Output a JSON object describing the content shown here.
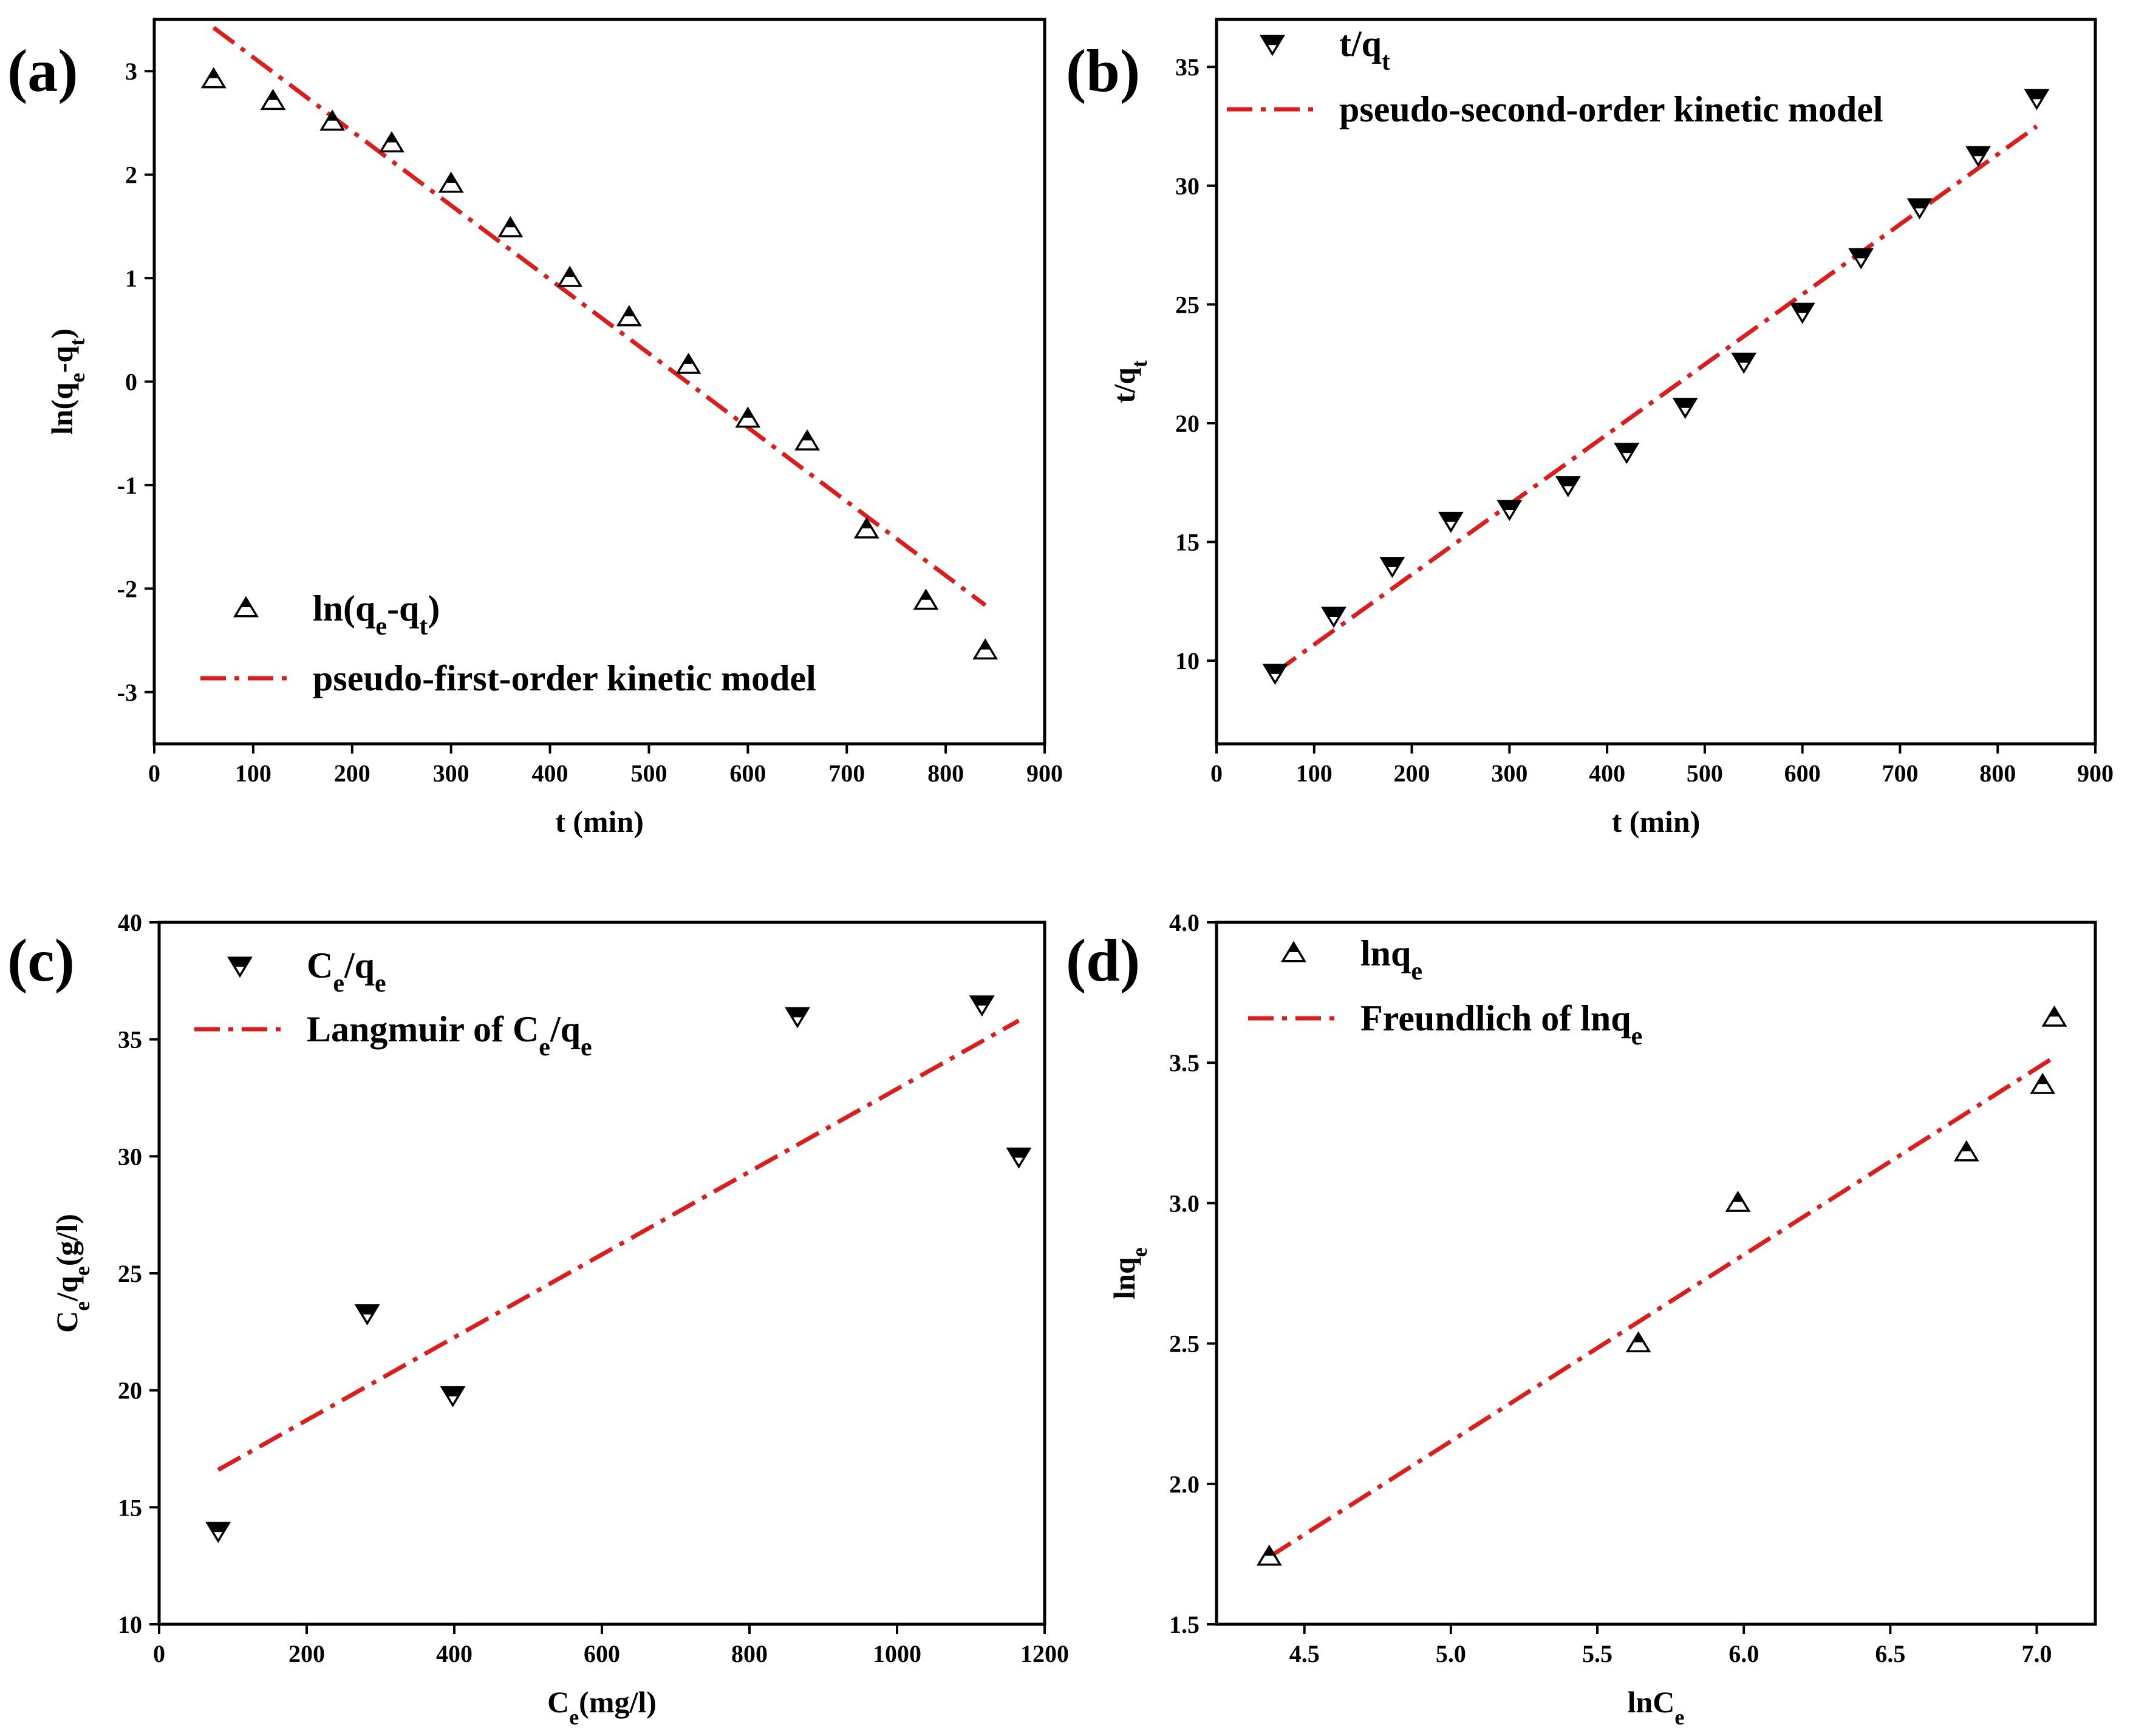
{
  "figure": {
    "colors": {
      "fit": "#dd1c1c",
      "marker_dark": "#000000",
      "marker_light": "#ffffff",
      "frame": "#000000"
    },
    "panels": [
      "a",
      "b",
      "c",
      "d"
    ]
  },
  "chart_data": [
    {
      "id": "a",
      "panel_label": "(a)",
      "type": "scatter",
      "title": "",
      "xlabel": "t (min)",
      "ylabel": "ln(qe-qt)",
      "xlim": [
        0,
        900
      ],
      "ylim": [
        -3.5,
        3.5
      ],
      "xticks": [
        0,
        100,
        200,
        300,
        400,
        500,
        600,
        700,
        800,
        900
      ],
      "yticks": [
        -3,
        -2,
        -1,
        0,
        1,
        2,
        3
      ],
      "marker": "triangle-up",
      "legend_position": "bottom-left",
      "series": [
        {
          "name": "ln(qe-qt)",
          "kind": "scatter",
          "x": [
            60,
            120,
            180,
            240,
            300,
            360,
            420,
            480,
            540,
            600,
            660,
            720,
            780,
            840
          ],
          "y": [
            2.92,
            2.71,
            2.51,
            2.3,
            1.91,
            1.48,
            1.0,
            0.62,
            0.16,
            -0.36,
            -0.58,
            -1.43,
            -2.12,
            -2.6
          ]
        },
        {
          "name": "pseudo-first-order kinetic model",
          "kind": "line",
          "x": [
            60,
            840
          ],
          "y": [
            3.42,
            -2.16
          ]
        }
      ]
    },
    {
      "id": "b",
      "panel_label": "(b)",
      "type": "scatter",
      "title": "",
      "xlabel": "t (min)",
      "ylabel": "t/qt",
      "xlim": [
        0,
        900
      ],
      "ylim": [
        6.5,
        37
      ],
      "xticks": [
        0,
        100,
        200,
        300,
        400,
        500,
        600,
        700,
        800,
        900
      ],
      "yticks": [
        10,
        15,
        20,
        25,
        30,
        35
      ],
      "marker": "triangle-down",
      "legend_position": "top-left",
      "series": [
        {
          "name": "t/qt",
          "kind": "scatter",
          "x": [
            60,
            120,
            180,
            240,
            300,
            360,
            420,
            480,
            540,
            600,
            660,
            720,
            780,
            840
          ],
          "y": [
            9.5,
            11.9,
            14.0,
            15.9,
            16.4,
            17.4,
            18.8,
            20.7,
            22.6,
            24.7,
            27.0,
            29.1,
            31.3,
            33.7
          ]
        },
        {
          "name": "pseudo-second-order kinetic model",
          "kind": "line",
          "x": [
            60,
            840
          ],
          "y": [
            9.5,
            32.5
          ]
        }
      ]
    },
    {
      "id": "c",
      "panel_label": "(c)",
      "type": "scatter",
      "title": "",
      "xlabel": "Ce(mg/l)",
      "ylabel": "Ce/qe(g/l)",
      "xlim": [
        0,
        1200
      ],
      "ylim": [
        10,
        40
      ],
      "xticks": [
        0,
        200,
        400,
        600,
        800,
        1000,
        1200
      ],
      "yticks": [
        10,
        15,
        20,
        25,
        30,
        35,
        40
      ],
      "marker": "triangle-down",
      "legend_position": "top-left",
      "series": [
        {
          "name": "Ce/qe",
          "kind": "scatter",
          "x": [
            80,
            282,
            398,
            865,
            1115,
            1165
          ],
          "y": [
            14.0,
            23.3,
            19.8,
            36.0,
            36.5,
            30.0
          ]
        },
        {
          "name": "Langmuir of Ce/qe",
          "kind": "line",
          "x": [
            80,
            1165
          ],
          "y": [
            16.6,
            35.8
          ]
        }
      ]
    },
    {
      "id": "d",
      "panel_label": "(d)",
      "type": "scatter",
      "title": "",
      "xlabel": "lnCe",
      "ylabel": "lnqe",
      "xlim": [
        4.2,
        7.2
      ],
      "ylim": [
        1.5,
        4.0
      ],
      "xticks": [
        4.5,
        5.0,
        5.5,
        6.0,
        6.5,
        7.0
      ],
      "yticks": [
        1.5,
        2.0,
        2.5,
        3.0,
        3.5,
        4.0
      ],
      "marker": "triangle-up",
      "legend_position": "top-left",
      "series": [
        {
          "name": "lnqe",
          "kind": "scatter",
          "x": [
            4.38,
            5.64,
            5.98,
            6.76,
            7.02,
            7.06
          ],
          "y": [
            1.74,
            2.5,
            3.0,
            3.18,
            3.42,
            3.66
          ]
        },
        {
          "name": "Freundlich of lnqe",
          "kind": "line",
          "x": [
            4.38,
            7.06
          ],
          "y": [
            1.74,
            3.52
          ]
        }
      ]
    }
  ]
}
